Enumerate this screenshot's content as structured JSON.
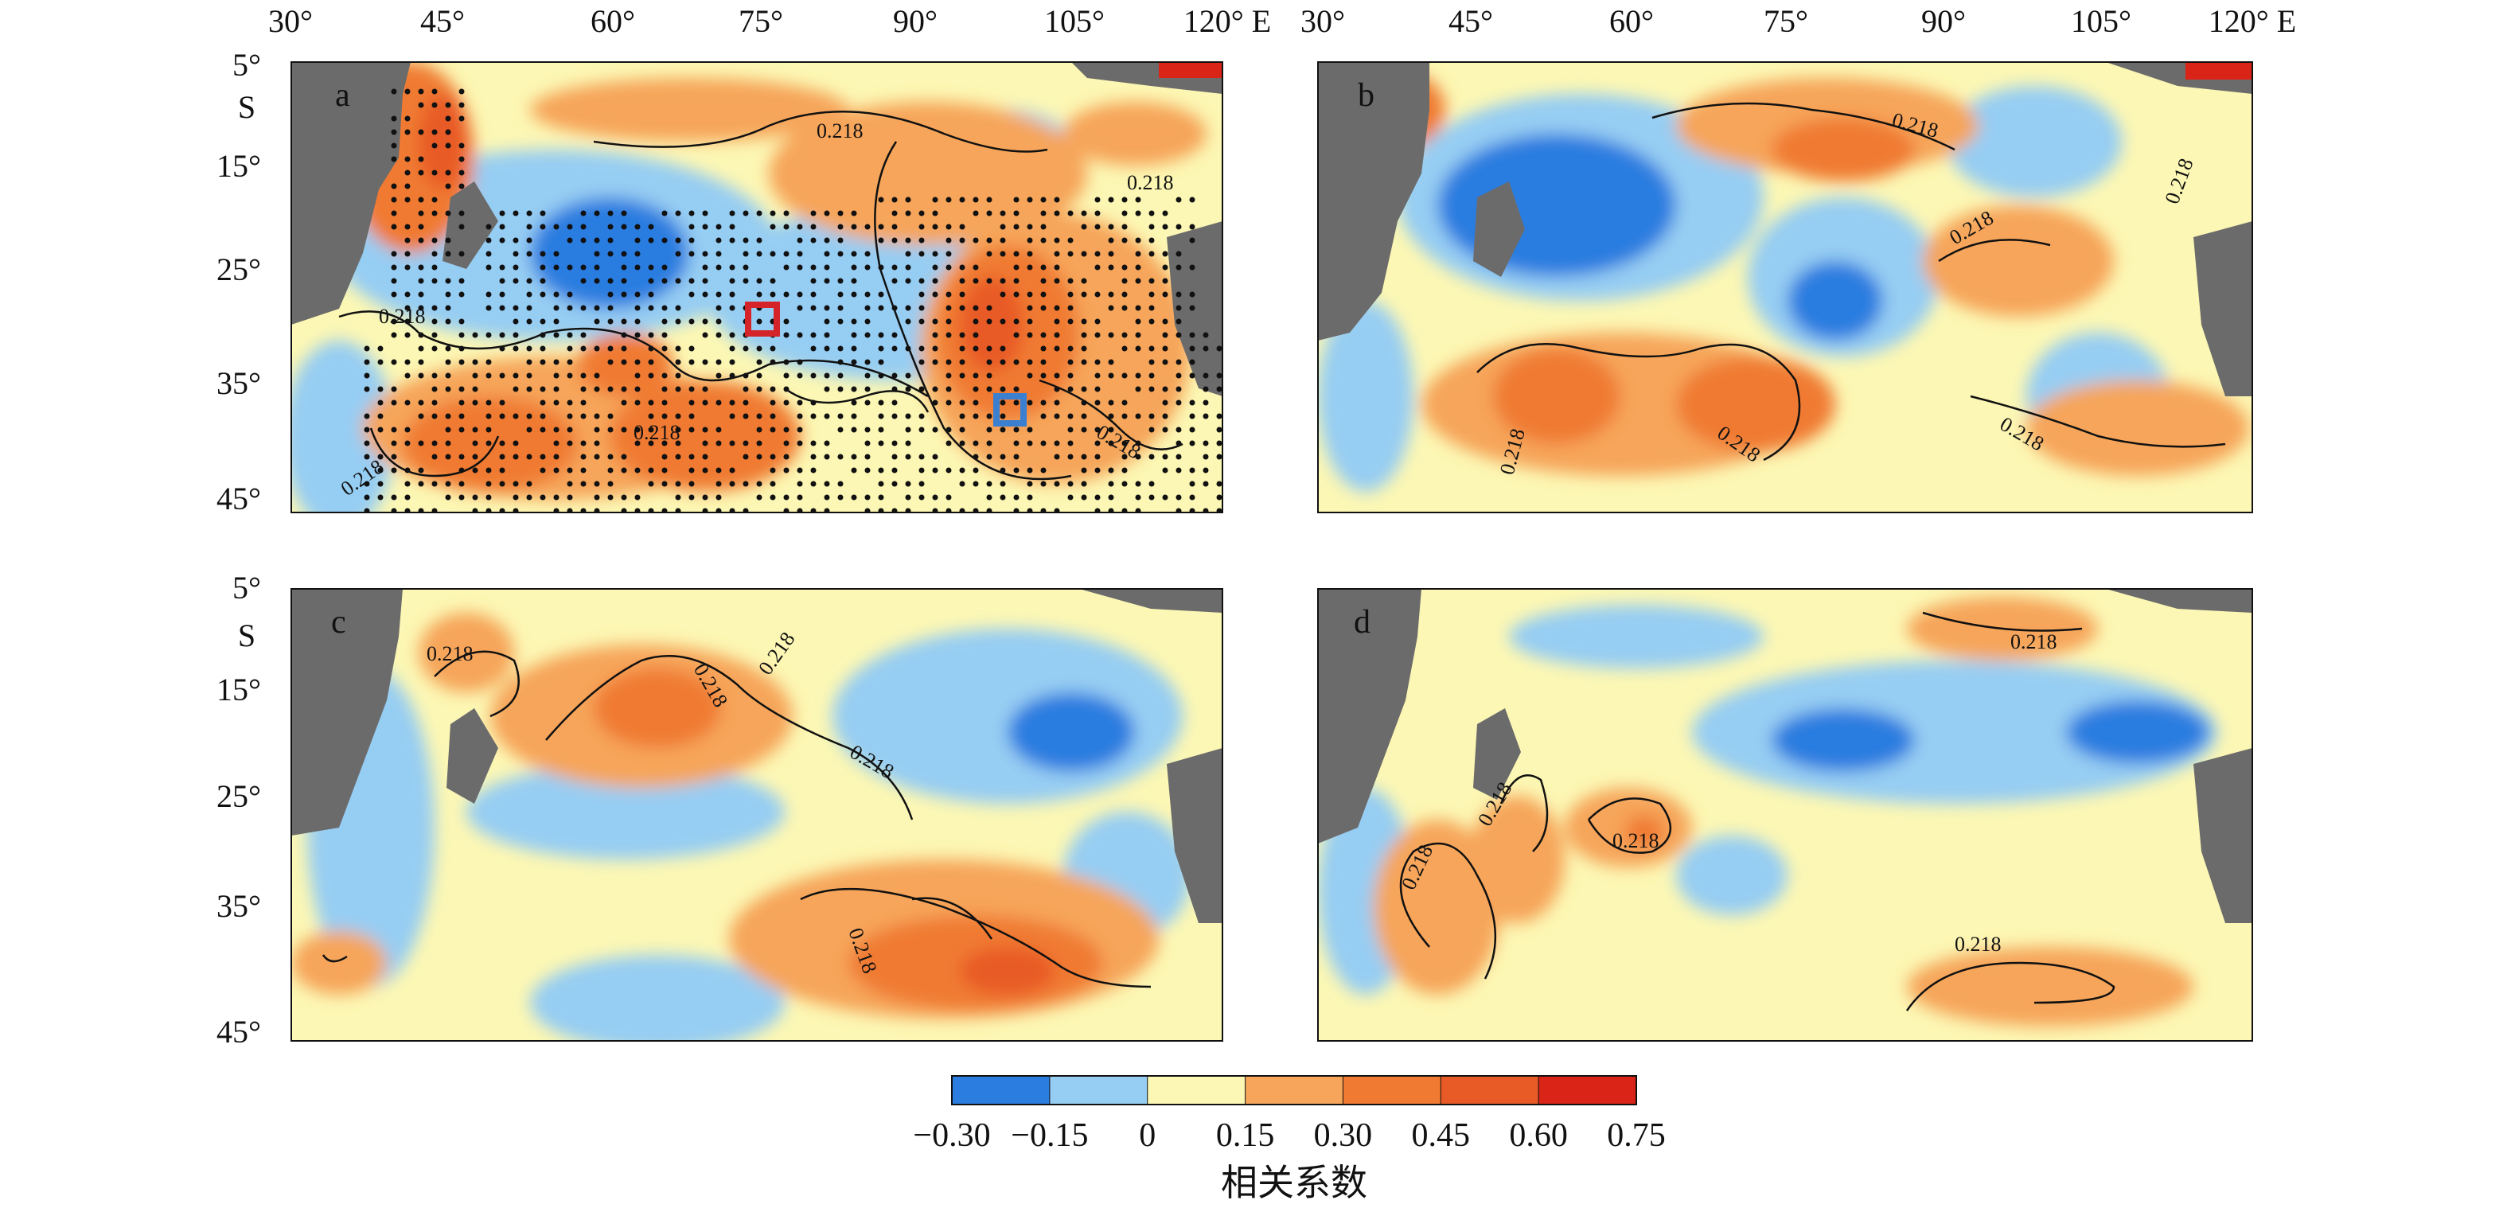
{
  "map": {
    "top_longitude_labels_left": [
      "30°",
      "45°",
      "60°",
      "75°",
      "90°",
      "105°",
      "120° E"
    ],
    "top_longitude_labels_right": [
      "30°",
      "45°",
      "60°",
      "75°",
      "90°",
      "105°",
      "120° E"
    ],
    "latitude_labels": [
      "5°",
      "15°",
      "25°",
      "35°",
      "45°"
    ],
    "latitude_hemisphere": "S",
    "longitude_range": [
      30,
      120
    ],
    "latitude_range_south": [
      5,
      45
    ],
    "contour_level": "0.218",
    "panels": [
      {
        "id": "a",
        "label": "a",
        "significance_stippling": true
      },
      {
        "id": "b",
        "label": "b",
        "significance_stippling": false
      },
      {
        "id": "c",
        "label": "c",
        "significance_stippling": false
      },
      {
        "id": "d",
        "label": "d",
        "significance_stippling": false
      }
    ],
    "boxes": [
      {
        "panel": "a",
        "color": "#d4242a",
        "lon": 76,
        "lat": 29
      },
      {
        "panel": "a",
        "color": "#3a7fd0",
        "lon": 99,
        "lat": 37
      }
    ],
    "colorbar": {
      "tick_labels": [
        "−0.30",
        "−0.15",
        "0",
        "0.15",
        "0.30",
        "0.45",
        "0.60",
        "0.75"
      ],
      "colors": [
        "#2b7de0",
        "#96cdf3",
        "#fcf7b4",
        "#f6a55a",
        "#f07a32",
        "#e85a26",
        "#da2418"
      ],
      "title": "相关系数"
    },
    "land_color": "#6b6b6b"
  }
}
